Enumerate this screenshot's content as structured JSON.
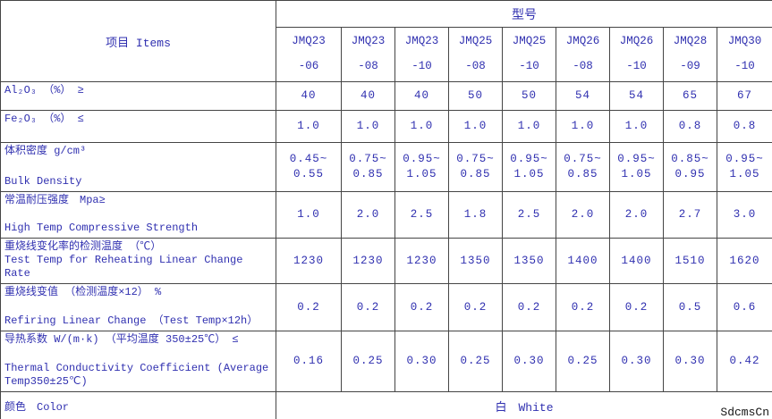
{
  "colors": {
    "text_blue": "#3030b0",
    "border_gray": "#454545",
    "watermark_black": "#161616",
    "background": "#ffffff"
  },
  "header": {
    "items_label": "项目 Items",
    "model_label": "型号",
    "models": [
      {
        "name": "JMQ23",
        "suffix": "-06"
      },
      {
        "name": "JMQ23",
        "suffix": "-08"
      },
      {
        "name": "JMQ23",
        "suffix": "-10"
      },
      {
        "name": "JMQ25",
        "suffix": "-08"
      },
      {
        "name": "JMQ25",
        "suffix": "-10"
      },
      {
        "name": "JMQ26",
        "suffix": "-08"
      },
      {
        "name": "JMQ26",
        "suffix": "-10"
      },
      {
        "name": "JMQ28",
        "suffix": "-09"
      },
      {
        "name": "JMQ30",
        "suffix": "-10"
      }
    ]
  },
  "rows": [
    {
      "label_cn": "Al₂O₃ （%） ≥",
      "label_en": "",
      "values": [
        "40",
        "40",
        "40",
        "50",
        "50",
        "54",
        "54",
        "65",
        "67"
      ]
    },
    {
      "label_cn": "Fe₂O₃ （%） ≤",
      "label_en": "",
      "values": [
        "1.0",
        "1.0",
        "1.0",
        "1.0",
        "1.0",
        "1.0",
        "1.0",
        "0.8",
        "0.8"
      ]
    },
    {
      "label_cn": "体积密度 g/cm³",
      "label_en": "Bulk Density",
      "values": [
        "0.45~\n0.55",
        "0.75~\n0.85",
        "0.95~\n1.05",
        "0.75~\n0.85",
        "0.95~\n1.05",
        "0.75~\n0.85",
        "0.95~\n1.05",
        "0.85~\n0.95",
        "0.95~\n1.05"
      ]
    },
    {
      "label_cn": "常温耐压强度　Mpa≥",
      "label_en": "High Temp Compressive Strength",
      "values": [
        "1.0",
        "2.0",
        "2.5",
        "1.8",
        "2.5",
        "2.0",
        "2.0",
        "2.7",
        "3.0"
      ]
    },
    {
      "label_cn": "重烧线变化率的检测温度 （℃）",
      "label_en": "Test Temp for Reheating Linear Change Rate",
      "values": [
        "1230",
        "1230",
        "1230",
        "1350",
        "1350",
        "1400",
        "1400",
        "1510",
        "1620"
      ]
    },
    {
      "label_cn": "重烧线变值 （检测温度×12） %",
      "label_en": "Refiring Linear Change （Test Temp×12h）",
      "values": [
        "0.2",
        "0.2",
        "0.2",
        "0.2",
        "0.2",
        "0.2",
        "0.2",
        "0.5",
        "0.6"
      ]
    },
    {
      "label_cn": "导热系数 W/(m·k) （平均温度 350±25℃） ≤",
      "label_en": "Thermal Conductivity Coefficient (Average Temp350±25℃)",
      "values": [
        "0.16",
        "0.25",
        "0.30",
        "0.25",
        "0.30",
        "0.25",
        "0.30",
        "0.30",
        "0.42"
      ]
    }
  ],
  "footer": {
    "label": "颜色　Color",
    "value": "白　White"
  },
  "watermark": "SdcmsCn"
}
